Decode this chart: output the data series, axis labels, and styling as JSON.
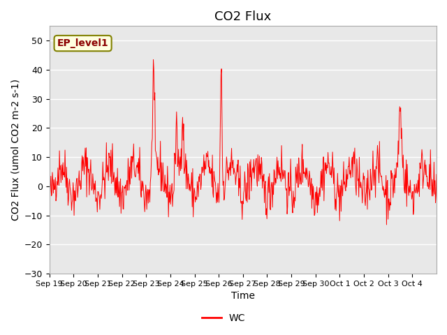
{
  "title": "CO2 Flux",
  "ylabel": "CO2 Flux (umol CO2 m-2 s-1)",
  "xlabel": "Time",
  "legend_label": "WC",
  "annotation": "EP_level1",
  "ylim": [
    -30,
    55
  ],
  "yticks": [
    -30,
    -20,
    -10,
    0,
    10,
    20,
    30,
    40,
    50
  ],
  "line_color": "red",
  "bg_color": "#e8e8e8",
  "grid_color": "white",
  "title_fontsize": 13,
  "label_fontsize": 10,
  "tick_fontsize": 9,
  "xtick_labels": [
    "Sep 19",
    "Sep 20",
    "Sep 21",
    "Sep 22",
    "Sep 23",
    "Sep 24",
    "Sep 25",
    "Sep 26",
    "Sep 27",
    "Sep 28",
    "Sep 29",
    "Sep 30",
    "Oct 1",
    "Oct 2",
    "Oct 3",
    "Oct 4"
  ]
}
